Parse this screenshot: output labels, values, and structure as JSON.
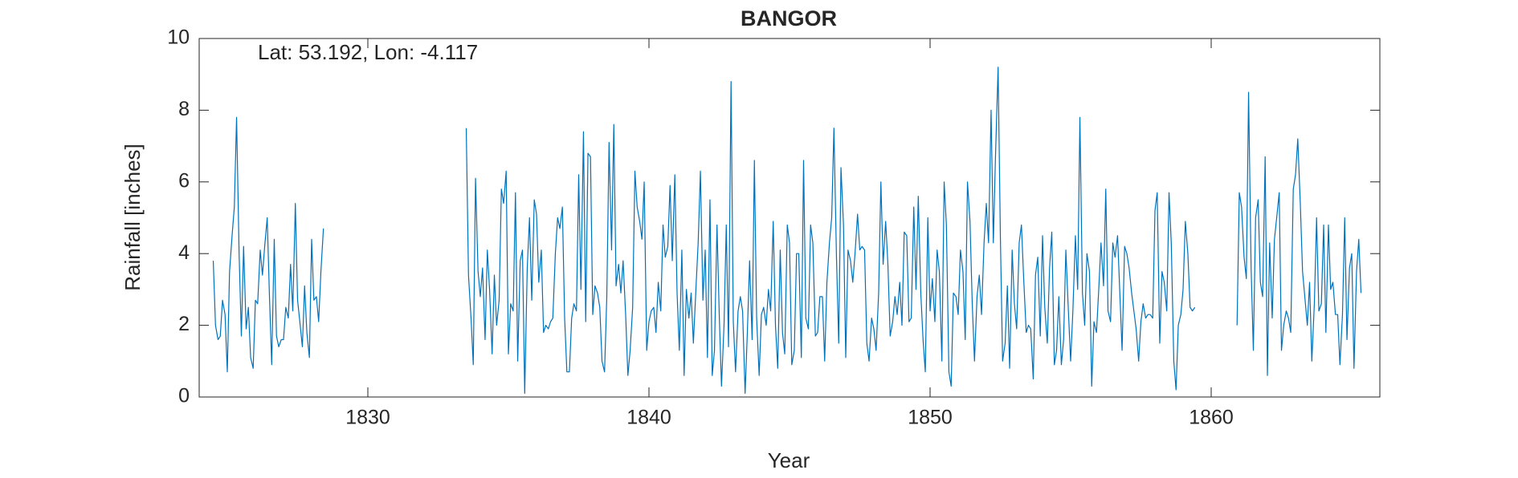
{
  "chart_data": {
    "type": "line",
    "title": "BANGOR",
    "annotation": "Lat: 53.192, Lon: -4.117",
    "x_label": "Year",
    "y_label": "Rainfall [inches]",
    "xlim": [
      1824,
      1866
    ],
    "xticks": [
      1830,
      1840,
      1850,
      1860
    ],
    "ylim": [
      0,
      10
    ],
    "yticks": [
      0,
      2,
      4,
      6,
      8,
      10
    ],
    "grid": false,
    "series": [
      {
        "name": "Rainfall",
        "color": "#0072bd",
        "x": [
          1824.5,
          1824.58,
          1824.67,
          1824.75,
          1824.83,
          1824.92,
          1825.0,
          1825.08,
          1825.17,
          1825.25,
          1825.33,
          1825.42,
          1825.5,
          1825.58,
          1825.67,
          1825.75,
          1825.83,
          1825.92,
          1826.0,
          1826.08,
          1826.17,
          1826.25,
          1826.33,
          1826.42,
          1826.5,
          1826.58,
          1826.67,
          1826.75,
          1826.83,
          1826.92,
          1827.0,
          1827.08,
          1827.17,
          1827.25,
          1827.33,
          1827.42,
          1827.5,
          1827.58,
          1827.67,
          1827.75,
          1827.83,
          1827.92,
          1828.0,
          1828.08,
          1828.17,
          1828.25,
          1828.33,
          1828.42,
          1831,
          1833.5,
          1833.58,
          1833.67,
          1833.75,
          1833.83,
          1833.92,
          1834.0,
          1834.08,
          1834.17,
          1834.25,
          1834.33,
          1834.42,
          1834.5,
          1834.58,
          1834.67,
          1834.75,
          1834.83,
          1834.92,
          1835.0,
          1835.08,
          1835.17,
          1835.25,
          1835.33,
          1835.42,
          1835.5,
          1835.58,
          1835.67,
          1835.75,
          1835.83,
          1835.92,
          1836.0,
          1836.08,
          1836.17,
          1836.25,
          1836.33,
          1836.42,
          1836.5,
          1836.58,
          1836.67,
          1836.75,
          1836.83,
          1836.92,
          1837.0,
          1837.08,
          1837.17,
          1837.25,
          1837.33,
          1837.42,
          1837.5,
          1837.58,
          1837.67,
          1837.75,
          1837.83,
          1837.92,
          1838.0,
          1838.08,
          1838.17,
          1838.25,
          1838.33,
          1838.42,
          1838.5,
          1838.58,
          1838.67,
          1838.75,
          1838.83,
          1838.92,
          1839.0,
          1839.08,
          1839.17,
          1839.25,
          1839.33,
          1839.42,
          1839.5,
          1839.58,
          1839.67,
          1839.75,
          1839.83,
          1839.92,
          1840.0,
          1840.08,
          1840.17,
          1840.25,
          1840.33,
          1840.42,
          1840.5,
          1840.58,
          1840.67,
          1840.75,
          1840.83,
          1840.92,
          1841.0,
          1841.08,
          1841.17,
          1841.25,
          1841.33,
          1841.42,
          1841.5,
          1841.58,
          1841.67,
          1841.75,
          1841.83,
          1841.92,
          1842.0,
          1842.08,
          1842.17,
          1842.25,
          1842.33,
          1842.42,
          1842.5,
          1842.58,
          1842.67,
          1842.75,
          1842.83,
          1842.92,
          1843.0,
          1843.08,
          1843.17,
          1843.25,
          1843.33,
          1843.42,
          1843.5,
          1843.58,
          1843.67,
          1843.75,
          1843.83,
          1843.92,
          1844.0,
          1844.08,
          1844.17,
          1844.25,
          1844.33,
          1844.42,
          1844.5,
          1844.58,
          1844.67,
          1844.75,
          1844.83,
          1844.92,
          1845.0,
          1845.08,
          1845.17,
          1845.25,
          1845.33,
          1845.42,
          1845.5,
          1845.58,
          1845.67,
          1845.75,
          1845.83,
          1845.92,
          1846.0,
          1846.08,
          1846.17,
          1846.25,
          1846.33,
          1846.42,
          1846.5,
          1846.58,
          1846.67,
          1846.75,
          1846.83,
          1846.92,
          1847.0,
          1847.08,
          1847.17,
          1847.25,
          1847.33,
          1847.42,
          1847.5,
          1847.58,
          1847.67,
          1847.75,
          1847.83,
          1847.92,
          1848.0,
          1848.08,
          1848.17,
          1848.25,
          1848.33,
          1848.42,
          1848.5,
          1848.58,
          1848.67,
          1848.75,
          1848.83,
          1848.92,
          1849.0,
          1849.08,
          1849.17,
          1849.25,
          1849.33,
          1849.42,
          1849.5,
          1849.58,
          1849.67,
          1849.75,
          1849.83,
          1849.92,
          1850.0,
          1850.08,
          1850.17,
          1850.25,
          1850.33,
          1850.42,
          1850.5,
          1850.58,
          1850.67,
          1850.75,
          1850.83,
          1850.92,
          1851.0,
          1851.08,
          1851.17,
          1851.25,
          1851.33,
          1851.42,
          1851.5,
          1851.58,
          1851.67,
          1851.75,
          1851.83,
          1851.92,
          1852.0,
          1852.08,
          1852.17,
          1852.25,
          1852.33,
          1852.42,
          1852.5,
          1852.58,
          1852.67,
          1852.75,
          1852.83,
          1852.92,
          1853.0,
          1853.08,
          1853.17,
          1853.25,
          1853.33,
          1853.42,
          1853.5,
          1853.58,
          1853.67,
          1853.75,
          1853.83,
          1853.92,
          1854.0,
          1854.08,
          1854.17,
          1854.25,
          1854.33,
          1854.42,
          1854.5,
          1854.58,
          1854.67,
          1854.75,
          1854.83,
          1854.92,
          1855.0,
          1855.08,
          1855.17,
          1855.25,
          1855.33,
          1855.42,
          1855.5,
          1855.58,
          1855.67,
          1855.75,
          1855.83,
          1855.92,
          1856.0,
          1856.08,
          1856.17,
          1856.25,
          1856.33,
          1856.42,
          1856.5,
          1856.58,
          1856.67,
          1856.75,
          1856.83,
          1856.92,
          1857.0,
          1857.08,
          1857.17,
          1857.25,
          1857.33,
          1857.42,
          1857.5,
          1857.58,
          1857.67,
          1857.75,
          1857.83,
          1857.92,
          1858.0,
          1858.08,
          1858.17,
          1858.25,
          1858.33,
          1858.42,
          1858.5,
          1858.58,
          1858.67,
          1858.75,
          1858.83,
          1858.92,
          1859.0,
          1859.08,
          1859.17,
          1859.25,
          1859.33,
          1859.42,
          1860.5,
          1860.92,
          1861.0,
          1861.08,
          1861.17,
          1861.25,
          1861.33,
          1861.42,
          1861.5,
          1861.58,
          1861.67,
          1861.75,
          1861.83,
          1861.92,
          1862.0,
          1862.08,
          1862.17,
          1862.25,
          1862.33,
          1862.42,
          1862.5,
          1862.58,
          1862.67,
          1862.75,
          1862.83,
          1862.92,
          1863.0,
          1863.08,
          1863.17,
          1863.25,
          1863.33,
          1863.42,
          1863.5,
          1863.58,
          1863.67,
          1863.75,
          1863.83,
          1863.92,
          1864.0,
          1864.08,
          1864.17,
          1864.25,
          1864.33,
          1864.42,
          1864.5,
          1864.58,
          1864.67,
          1864.75,
          1864.83,
          1864.92,
          1865.0,
          1865.08,
          1865.17,
          1865.25,
          1865.33
        ],
        "values": [
          3.8,
          2.0,
          1.6,
          1.7,
          2.7,
          2.3,
          0.7,
          3.5,
          4.5,
          5.3,
          7.8,
          4.0,
          1.7,
          4.2,
          1.9,
          2.5,
          1.1,
          0.8,
          2.7,
          2.6,
          4.1,
          3.4,
          4.2,
          5.0,
          2.8,
          0.9,
          4.4,
          1.7,
          1.4,
          1.6,
          1.6,
          2.5,
          2.2,
          3.7,
          2.4,
          5.4,
          2.7,
          2.1,
          1.4,
          3.1,
          1.8,
          1.1,
          4.4,
          2.7,
          2.8,
          2.1,
          3.5,
          4.7,
          null,
          7.5,
          3.4,
          2.2,
          0.9,
          6.1,
          3.5,
          2.8,
          3.6,
          1.6,
          4.1,
          3.0,
          1.2,
          3.4,
          2.0,
          2.7,
          5.8,
          5.4,
          6.3,
          1.2,
          2.6,
          2.4,
          5.7,
          1.0,
          3.8,
          4.1,
          0.1,
          3.6,
          5.0,
          2.7,
          5.5,
          5.1,
          3.2,
          4.1,
          1.8,
          2.0,
          1.9,
          2.1,
          2.2,
          4.0,
          5.0,
          4.7,
          5.3,
          2.2,
          0.7,
          0.7,
          2.2,
          2.6,
          2.4,
          6.2,
          3.0,
          7.4,
          2.1,
          6.8,
          6.7,
          2.3,
          3.1,
          2.9,
          2.5,
          1.0,
          0.7,
          2.8,
          7.1,
          4.1,
          7.6,
          3.1,
          3.7,
          2.9,
          3.8,
          2.3,
          0.6,
          1.3,
          2.5,
          6.3,
          5.3,
          4.9,
          4.4,
          6.0,
          1.3,
          2.1,
          2.4,
          2.5,
          1.8,
          3.2,
          2.4,
          4.8,
          3.9,
          4.2,
          5.9,
          3.8,
          6.2,
          2.9,
          1.3,
          4.1,
          0.6,
          3.0,
          2.2,
          2.9,
          1.5,
          3.0,
          4.3,
          6.3,
          2.7,
          4.1,
          1.1,
          5.5,
          0.6,
          1.3,
          4.8,
          2.3,
          0.3,
          2.0,
          4.8,
          1.4,
          8.8,
          2.1,
          0.7,
          2.4,
          2.8,
          2.4,
          0.1,
          1.8,
          3.8,
          1.6,
          6.6,
          2.2,
          0.6,
          2.3,
          2.5,
          2.0,
          3.0,
          2.4,
          4.9,
          2.0,
          0.8,
          4.1,
          1.8,
          1.2,
          4.8,
          4.3,
          0.9,
          1.3,
          4.0,
          4.0,
          1.1,
          6.6,
          2.2,
          1.9,
          4.8,
          4.3,
          1.7,
          1.8,
          2.8,
          2.8,
          1.0,
          3.2,
          4.3,
          5.0,
          7.5,
          3.9,
          1.5,
          6.4,
          4.8,
          1.1,
          4.1,
          3.8,
          3.2,
          4.0,
          5.1,
          4.1,
          4.2,
          4.1,
          1.5,
          1.0,
          2.2,
          1.9,
          1.3,
          2.9,
          6.0,
          3.7,
          4.9,
          3.7,
          1.7,
          2.1,
          2.8,
          2.3,
          3.2,
          2.0,
          4.6,
          4.5,
          2.1,
          2.2,
          5.3,
          3.0,
          5.6,
          2.9,
          1.6,
          0.7,
          5.0,
          2.4,
          3.3,
          2.1,
          4.1,
          3.5,
          1.0,
          6.0,
          4.8,
          0.7,
          0.3,
          2.9,
          2.8,
          2.3,
          4.1,
          3.5,
          1.6,
          6.0,
          4.9,
          2.6,
          1.0,
          2.8,
          3.4,
          2.3,
          4.3,
          5.4,
          4.3,
          8.0,
          4.3,
          6.8,
          9.2,
          4.5,
          1.0,
          1.5,
          3.1,
          0.8,
          4.1,
          2.6,
          1.9,
          4.3,
          4.8,
          3.3,
          1.8,
          2.0,
          1.9,
          0.5,
          3.4,
          3.9,
          1.7,
          4.5,
          2.5,
          1.5,
          3.6,
          4.6,
          0.9,
          1.3,
          2.8,
          0.9,
          1.6,
          4.1,
          2.4,
          1.0,
          2.4,
          4.5,
          3.0,
          7.8,
          2.9,
          2.0,
          4.0,
          3.5,
          0.3,
          2.1,
          1.8,
          3.0,
          4.3,
          3.1,
          5.8,
          2.4,
          2.1,
          4.3,
          3.9,
          4.5,
          2.9,
          1.3,
          4.2,
          4.0,
          3.6,
          2.9,
          2.4,
          1.9,
          1.0,
          2.1,
          2.6,
          2.2,
          2.3,
          2.3,
          2.2,
          5.2,
          5.7,
          1.5,
          3.5,
          3.2,
          2.4,
          5.7,
          4.3,
          1.0,
          0.2,
          2.0,
          2.3,
          3.0,
          4.9,
          4.0,
          2.5,
          2.4,
          2.5,
          null,
          2.0,
          5.7,
          5.3,
          3.9,
          3.3,
          8.5,
          3.6,
          1.3,
          5.0,
          5.5,
          3.2,
          2.8,
          6.7,
          0.6,
          4.3,
          2.2,
          4.4,
          5.0,
          5.7,
          1.3,
          2.0,
          2.4,
          2.2,
          1.8,
          5.8,
          6.2,
          7.2,
          5.4,
          3.5,
          2.8,
          2.0,
          3.2,
          1.0,
          2.6,
          5.0,
          2.4,
          2.6,
          4.8,
          1.8,
          4.8,
          3.0,
          3.2,
          2.3,
          2.3,
          0.9,
          2.3,
          5.0,
          1.6,
          3.6,
          4.0,
          0.8,
          3.5,
          4.4,
          2.9
        ]
      }
    ]
  }
}
